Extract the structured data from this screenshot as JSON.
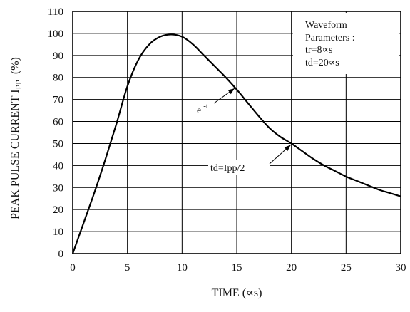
{
  "chart_data": {
    "type": "line",
    "xlabel": "TIME  (∝s)",
    "ylabel_main": "PEAK PULSE CURRENT I",
    "ylabel_sub": "PP",
    "ylabel_unit": "(%)",
    "xlim": [
      0,
      30
    ],
    "ylim": [
      0,
      110
    ],
    "xticks": [
      0,
      5,
      10,
      15,
      20,
      25,
      30
    ],
    "yticks": [
      0,
      10,
      20,
      30,
      40,
      50,
      60,
      70,
      80,
      90,
      100,
      110
    ],
    "grid": true,
    "series": [
      {
        "x": [
          0,
          1,
          2,
          3,
          4,
          5,
          6,
          7,
          8,
          9,
          10,
          11,
          12,
          13,
          14,
          15,
          16,
          17,
          18,
          19,
          20,
          21,
          22,
          23,
          24,
          25,
          26,
          27,
          28,
          29,
          30
        ],
        "y": [
          0,
          14,
          28,
          43,
          59,
          76,
          88,
          95,
          98.5,
          99.5,
          98.5,
          95,
          90,
          85,
          80,
          74.5,
          68.5,
          62.5,
          57,
          53,
          50,
          46.5,
          43,
          40,
          37.5,
          35,
          33,
          31,
          29,
          27.5,
          26
        ]
      }
    ],
    "legend": {
      "position": "top-right",
      "lines": [
        "Waveform",
        "Parameters :",
        "tr=8∝s",
        "td=20∝s"
      ]
    },
    "annotations": [
      {
        "text_base": "e",
        "text_sup": "-t",
        "x": 15,
        "y": 76
      },
      {
        "text": "td=Ipp/2",
        "x": 20,
        "y": 50
      }
    ]
  }
}
